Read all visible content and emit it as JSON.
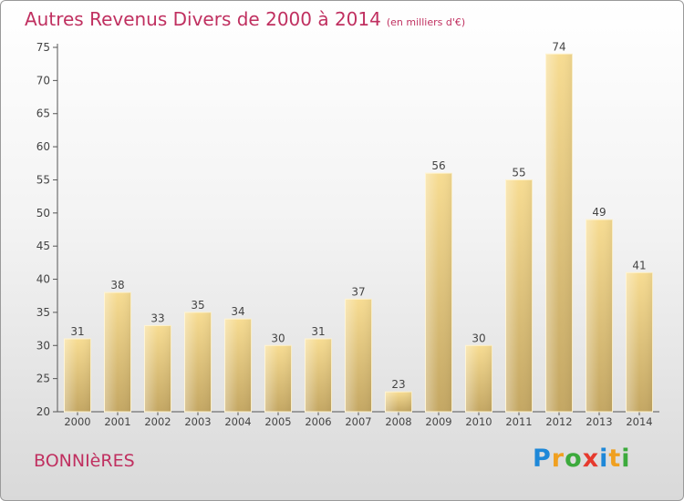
{
  "title": "Autres Revenus Divers de 2000 à 2014",
  "unit_note": "(en milliers d'€)",
  "footer_name": "BONNIèRES",
  "logo": {
    "letters": [
      "P",
      "r",
      "o",
      "x",
      "i",
      "t",
      "i"
    ],
    "colors": [
      "#1e88d8",
      "#f0a020",
      "#3caa3c",
      "#e63a2e",
      "#1e88d8",
      "#f0a020",
      "#3caa3c"
    ]
  },
  "chart_data": {
    "type": "bar",
    "title": "Autres Revenus Divers de 2000 à 2014",
    "subtitle": "(en milliers d'€)",
    "xlabel": "",
    "ylabel": "",
    "categories": [
      "2000",
      "2001",
      "2002",
      "2003",
      "2004",
      "2005",
      "2006",
      "2007",
      "2008",
      "2009",
      "2010",
      "2011",
      "2012",
      "2013",
      "2014"
    ],
    "values": [
      31,
      38,
      33,
      35,
      34,
      30,
      31,
      37,
      23,
      56,
      30,
      55,
      74,
      49,
      41
    ],
    "ylim": [
      20,
      75
    ],
    "yticks": [
      20,
      25,
      30,
      35,
      40,
      45,
      50,
      55,
      60,
      65,
      70,
      75
    ],
    "grid": false,
    "data_labels": true,
    "bar_color": "#e6c97c"
  }
}
